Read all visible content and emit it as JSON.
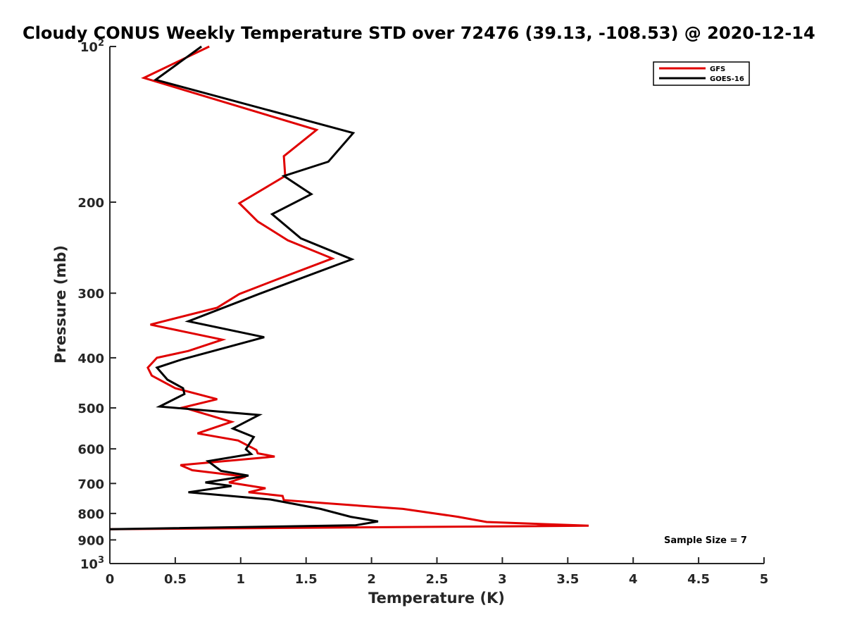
{
  "chart_data": {
    "type": "line",
    "title": "Cloudy CONUS Weekly Temperature STD over 72476 (39.13, -108.53) @ 2020-12-14",
    "xlabel": "Temperature (K)",
    "ylabel": "Pressure (mb)",
    "xlim": [
      0,
      5
    ],
    "ylim": [
      100,
      1000
    ],
    "yscale": "log",
    "y_reversed": true,
    "grid": false,
    "legend_position": "top-right",
    "xticks": [
      0,
      0.5,
      1,
      1.5,
      2,
      2.5,
      3,
      3.5,
      4,
      4.5,
      5
    ],
    "xtick_labels": [
      "0",
      "0.5",
      "1",
      "1.5",
      "2",
      "2.5",
      "3",
      "3.5",
      "4",
      "4.5",
      "5"
    ],
    "yticks": [
      {
        "value": 100,
        "base": "10",
        "exp": "2"
      },
      {
        "value": 200,
        "label": "200"
      },
      {
        "value": 300,
        "label": "300"
      },
      {
        "value": 400,
        "label": "400"
      },
      {
        "value": 500,
        "label": "500"
      },
      {
        "value": 600,
        "label": "600"
      },
      {
        "value": 700,
        "label": "700"
      },
      {
        "value": 800,
        "label": "800"
      },
      {
        "value": 900,
        "label": "900"
      },
      {
        "value": 1000,
        "base": "10",
        "exp": "3"
      }
    ],
    "series": [
      {
        "name": "GFS",
        "color": "#e00000",
        "points": [
          [
            0.76,
            100
          ],
          [
            0.26,
            115
          ],
          [
            1.58,
            145
          ],
          [
            1.33,
            163
          ],
          [
            1.34,
            178
          ],
          [
            0.99,
            201
          ],
          [
            1.13,
            218
          ],
          [
            1.36,
            237
          ],
          [
            1.7,
            257
          ],
          [
            1.28,
            282
          ],
          [
            0.99,
            301
          ],
          [
            0.82,
            320
          ],
          [
            0.31,
            345
          ],
          [
            0.86,
            369
          ],
          [
            0.6,
            388
          ],
          [
            0.36,
            400
          ],
          [
            0.29,
            418
          ],
          [
            0.32,
            433
          ],
          [
            0.5,
            458
          ],
          [
            0.82,
            481
          ],
          [
            0.56,
            499
          ],
          [
            0.93,
            532
          ],
          [
            0.67,
            560
          ],
          [
            0.98,
            578
          ],
          [
            1.12,
            603
          ],
          [
            1.13,
            612
          ],
          [
            1.26,
            621
          ],
          [
            0.54,
            645
          ],
          [
            0.63,
            660
          ],
          [
            1.04,
            679
          ],
          [
            0.91,
            697
          ],
          [
            1.19,
            715
          ],
          [
            1.06,
            728
          ],
          [
            1.32,
            740
          ],
          [
            1.33,
            754
          ],
          [
            2.24,
            784
          ],
          [
            2.66,
            812
          ],
          [
            2.88,
            831
          ],
          [
            3.66,
            845
          ],
          [
            0.0,
            858
          ]
        ]
      },
      {
        "name": "GOES-16",
        "color": "#000000",
        "points": [
          [
            0.7,
            100
          ],
          [
            0.35,
            116
          ],
          [
            1.86,
            147
          ],
          [
            1.67,
            167
          ],
          [
            1.33,
            178
          ],
          [
            1.54,
            193
          ],
          [
            1.24,
            211
          ],
          [
            1.46,
            235
          ],
          [
            1.85,
            258
          ],
          [
            1.14,
            301
          ],
          [
            0.6,
            340
          ],
          [
            1.18,
            365
          ],
          [
            0.55,
            403
          ],
          [
            0.36,
            418
          ],
          [
            0.44,
            441
          ],
          [
            0.56,
            458
          ],
          [
            0.57,
            470
          ],
          [
            0.38,
            497
          ],
          [
            1.14,
            516
          ],
          [
            0.94,
            548
          ],
          [
            1.1,
            569
          ],
          [
            1.04,
            601
          ],
          [
            1.08,
            614
          ],
          [
            0.75,
            634
          ],
          [
            0.85,
            662
          ],
          [
            1.06,
            676
          ],
          [
            0.73,
            697
          ],
          [
            0.93,
            708
          ],
          [
            0.6,
            728
          ],
          [
            1.23,
            752
          ],
          [
            1.61,
            784
          ],
          [
            1.84,
            812
          ],
          [
            2.05,
            829
          ],
          [
            1.88,
            843
          ],
          [
            0.0,
            858
          ]
        ]
      }
    ],
    "annotation": "Sample Size = 7"
  }
}
